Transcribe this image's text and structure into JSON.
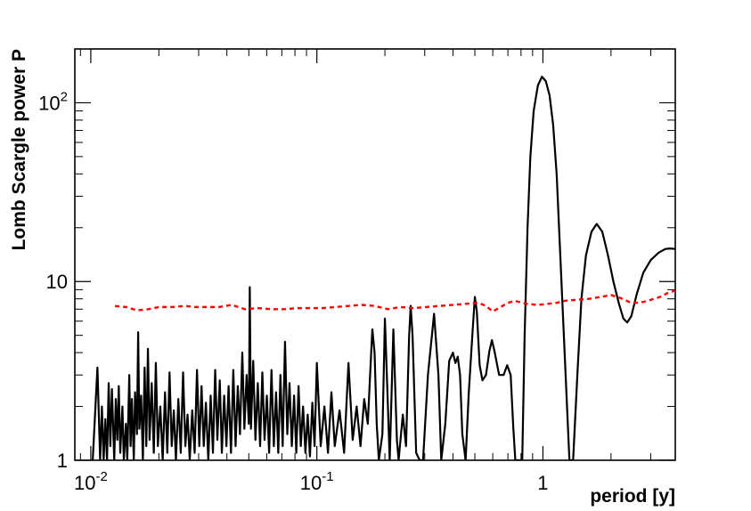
{
  "chart_data": {
    "type": "line",
    "xlabel": "period [y]",
    "ylabel": "Lomb Scargle power P",
    "x_scale": "log",
    "y_scale": "log",
    "xlim": [
      0.0085,
      3.85
    ],
    "ylim": [
      1,
      200
    ],
    "grid": false,
    "x_ticks": [
      {
        "value": 0.01,
        "base": "10",
        "exp": "-2"
      },
      {
        "value": 0.1,
        "base": "10",
        "exp": "-1"
      },
      {
        "value": 1,
        "base": "1",
        "exp": ""
      }
    ],
    "y_ticks": [
      {
        "value": 1,
        "base": "1",
        "exp": ""
      },
      {
        "value": 10,
        "base": "10",
        "exp": ""
      },
      {
        "value": 100,
        "base": "10",
        "exp": "2"
      }
    ],
    "series": [
      {
        "style": "solid",
        "color": "#000000",
        "points": [
          [
            0.0102,
            1
          ],
          [
            0.0107,
            3.3
          ],
          [
            0.011,
            1
          ],
          [
            0.0112,
            2.0
          ],
          [
            0.0114,
            1
          ],
          [
            0.0116,
            1.7
          ],
          [
            0.0118,
            1
          ],
          [
            0.012,
            2.7
          ],
          [
            0.0122,
            1.2
          ],
          [
            0.0124,
            2.5
          ],
          [
            0.0127,
            1
          ],
          [
            0.0129,
            2.2
          ],
          [
            0.0131,
            1.3
          ],
          [
            0.0133,
            2.6
          ],
          [
            0.0135,
            1.1
          ],
          [
            0.0138,
            2.0
          ],
          [
            0.014,
            1
          ],
          [
            0.0143,
            1.6
          ],
          [
            0.0145,
            1
          ],
          [
            0.0148,
            3.0
          ],
          [
            0.015,
            1.2
          ],
          [
            0.0152,
            2.2
          ],
          [
            0.0155,
            1
          ],
          [
            0.0157,
            2.4
          ],
          [
            0.016,
            1.4
          ],
          [
            0.0162,
            5.2
          ],
          [
            0.0164,
            1.5
          ],
          [
            0.0167,
            2.3
          ],
          [
            0.017,
            1
          ],
          [
            0.0173,
            3.3
          ],
          [
            0.0176,
            1.2
          ],
          [
            0.0179,
            4.2
          ],
          [
            0.0182,
            1.3
          ],
          [
            0.0186,
            2.7
          ],
          [
            0.019,
            1.1
          ],
          [
            0.0194,
            3.5
          ],
          [
            0.0198,
            1.2
          ],
          [
            0.0203,
            2.0
          ],
          [
            0.0208,
            1
          ],
          [
            0.0213,
            2.4
          ],
          [
            0.0218,
            1.1
          ],
          [
            0.0223,
            3.1
          ],
          [
            0.0228,
            1.2
          ],
          [
            0.0233,
            1.9
          ],
          [
            0.0238,
            1
          ],
          [
            0.0244,
            2.2
          ],
          [
            0.025,
            1.1
          ],
          [
            0.0256,
            3.1
          ],
          [
            0.0262,
            1.2
          ],
          [
            0.0268,
            1.8
          ],
          [
            0.0274,
            1
          ],
          [
            0.0281,
            1.9
          ],
          [
            0.0288,
            1.1
          ],
          [
            0.0295,
            3.2
          ],
          [
            0.0302,
            1.2
          ],
          [
            0.0309,
            2.6
          ],
          [
            0.0316,
            1.2
          ],
          [
            0.0323,
            2.1
          ],
          [
            0.0331,
            1.0
          ],
          [
            0.0339,
            2.3
          ],
          [
            0.0347,
            1.1
          ],
          [
            0.0355,
            3.2
          ],
          [
            0.0363,
            1.3
          ],
          [
            0.0372,
            2.8
          ],
          [
            0.038,
            1.1
          ],
          [
            0.0389,
            2.3
          ],
          [
            0.0398,
            1.2
          ],
          [
            0.0407,
            2.6
          ],
          [
            0.0417,
            1.1
          ],
          [
            0.0427,
            3.2
          ],
          [
            0.0437,
            1.2
          ],
          [
            0.0447,
            2.6
          ],
          [
            0.0457,
            1.4
          ],
          [
            0.0468,
            4.0
          ],
          [
            0.0478,
            1.5
          ],
          [
            0.0489,
            3.0
          ],
          [
            0.05,
            1.6
          ],
          [
            0.0505,
            9.3
          ],
          [
            0.0511,
            1.5
          ],
          [
            0.0523,
            3.6
          ],
          [
            0.0535,
            1.3
          ],
          [
            0.0548,
            2.7
          ],
          [
            0.0561,
            1.2
          ],
          [
            0.0574,
            3.1
          ],
          [
            0.0587,
            1.3
          ],
          [
            0.0601,
            2.3
          ],
          [
            0.0615,
            1.1
          ],
          [
            0.063,
            3.2
          ],
          [
            0.0645,
            1.2
          ],
          [
            0.066,
            2.4
          ],
          [
            0.0675,
            1.1
          ],
          [
            0.069,
            3.0
          ],
          [
            0.0706,
            1.2
          ],
          [
            0.0723,
            4.6
          ],
          [
            0.074,
            1.4
          ],
          [
            0.0757,
            2.7
          ],
          [
            0.0775,
            1.2
          ],
          [
            0.0793,
            2.3
          ],
          [
            0.0811,
            1.1
          ],
          [
            0.083,
            2.6
          ],
          [
            0.0849,
            1.2
          ],
          [
            0.0869,
            2.0
          ],
          [
            0.089,
            1.1
          ],
          [
            0.0911,
            1.8
          ],
          [
            0.0932,
            1.05
          ],
          [
            0.0955,
            2.1
          ],
          [
            0.0977,
            1.2
          ],
          [
            0.1,
            3.5
          ],
          [
            0.104,
            1.2
          ],
          [
            0.108,
            2.0
          ],
          [
            0.112,
            1.1
          ],
          [
            0.116,
            2.4
          ],
          [
            0.12,
            1.2
          ],
          [
            0.126,
            1.9
          ],
          [
            0.132,
            1.1
          ],
          [
            0.138,
            3.5
          ],
          [
            0.144,
            1.3
          ],
          [
            0.15,
            2.0
          ],
          [
            0.156,
            1.2
          ],
          [
            0.162,
            2.2
          ],
          [
            0.168,
            1.6
          ],
          [
            0.172,
            3.0
          ],
          [
            0.176,
            5.4
          ],
          [
            0.18,
            4.0
          ],
          [
            0.184,
            1.6
          ],
          [
            0.188,
            1.0
          ],
          [
            0.195,
            1.4
          ],
          [
            0.2,
            6.2
          ],
          [
            0.205,
            2.5
          ],
          [
            0.21,
            1.0
          ],
          [
            0.218,
            5.4
          ],
          [
            0.226,
            1.3
          ],
          [
            0.23,
            1.0
          ],
          [
            0.24,
            1.8
          ],
          [
            0.248,
            1.2
          ],
          [
            0.256,
            5.0
          ],
          [
            0.26,
            7.3
          ],
          [
            0.265,
            5.0
          ],
          [
            0.275,
            1.1
          ],
          [
            0.285,
            1.0
          ],
          [
            0.295,
            1.0
          ],
          [
            0.31,
            3.0
          ],
          [
            0.33,
            6.6
          ],
          [
            0.345,
            3.0
          ],
          [
            0.355,
            1.0
          ],
          [
            0.37,
            1.6
          ],
          [
            0.385,
            3.6
          ],
          [
            0.4,
            4.0
          ],
          [
            0.41,
            3.5
          ],
          [
            0.42,
            3.8
          ],
          [
            0.43,
            3.0
          ],
          [
            0.44,
            1.4
          ],
          [
            0.455,
            1.0
          ],
          [
            0.47,
            2.4
          ],
          [
            0.49,
            5.6
          ],
          [
            0.5,
            8.2
          ],
          [
            0.51,
            6.8
          ],
          [
            0.525,
            3.4
          ],
          [
            0.54,
            2.8
          ],
          [
            0.56,
            3.0
          ],
          [
            0.58,
            4.1
          ],
          [
            0.595,
            4.7
          ],
          [
            0.61,
            4.1
          ],
          [
            0.64,
            3.0
          ],
          [
            0.67,
            3.0
          ],
          [
            0.695,
            3.4
          ],
          [
            0.72,
            3.0
          ],
          [
            0.74,
            1.5
          ],
          [
            0.755,
            1.0
          ],
          [
            0.81,
            1.0
          ],
          [
            0.83,
            5.0
          ],
          [
            0.855,
            20
          ],
          [
            0.88,
            50
          ],
          [
            0.91,
            90
          ],
          [
            0.95,
            125
          ],
          [
            0.99,
            140
          ],
          [
            1.03,
            132
          ],
          [
            1.07,
            110
          ],
          [
            1.11,
            75
          ],
          [
            1.15,
            40
          ],
          [
            1.2,
            12
          ],
          [
            1.26,
            3.0
          ],
          [
            1.31,
            1.0
          ],
          [
            1.36,
            1.0
          ],
          [
            1.42,
            3.0
          ],
          [
            1.48,
            8.0
          ],
          [
            1.55,
            14
          ],
          [
            1.64,
            19
          ],
          [
            1.73,
            21
          ],
          [
            1.83,
            19
          ],
          [
            1.94,
            14
          ],
          [
            2.05,
            10
          ],
          [
            2.17,
            7.5
          ],
          [
            2.27,
            6.2
          ],
          [
            2.36,
            5.9
          ],
          [
            2.46,
            6.4
          ],
          [
            2.6,
            8.5
          ],
          [
            2.78,
            11.2
          ],
          [
            3.0,
            13.2
          ],
          [
            3.25,
            14.5
          ],
          [
            3.48,
            15.2
          ],
          [
            3.65,
            15.3
          ],
          [
            3.85,
            15.2
          ]
        ]
      },
      {
        "style": "dashed",
        "color": "#ff0000",
        "points": [
          [
            0.0128,
            7.3
          ],
          [
            0.0143,
            7.2
          ],
          [
            0.016,
            6.9
          ],
          [
            0.018,
            7.0
          ],
          [
            0.02,
            7.2
          ],
          [
            0.023,
            7.2
          ],
          [
            0.026,
            7.3
          ],
          [
            0.029,
            7.2
          ],
          [
            0.033,
            7.2
          ],
          [
            0.037,
            7.2
          ],
          [
            0.042,
            7.4
          ],
          [
            0.048,
            7.0
          ],
          [
            0.055,
            7.1
          ],
          [
            0.063,
            7.0
          ],
          [
            0.072,
            7.0
          ],
          [
            0.082,
            7.1
          ],
          [
            0.093,
            7.1
          ],
          [
            0.106,
            7.1
          ],
          [
            0.121,
            7.2
          ],
          [
            0.138,
            7.3
          ],
          [
            0.158,
            7.4
          ],
          [
            0.18,
            7.3
          ],
          [
            0.206,
            7.0
          ],
          [
            0.235,
            7.2
          ],
          [
            0.268,
            7.1
          ],
          [
            0.306,
            7.2
          ],
          [
            0.349,
            7.3
          ],
          [
            0.399,
            7.4
          ],
          [
            0.455,
            7.5
          ],
          [
            0.52,
            7.6
          ],
          [
            0.56,
            7.3
          ],
          [
            0.6,
            6.8
          ],
          [
            0.65,
            7.2
          ],
          [
            0.7,
            7.6
          ],
          [
            0.75,
            7.8
          ],
          [
            0.85,
            7.5
          ],
          [
            0.95,
            7.4
          ],
          [
            1.05,
            7.5
          ],
          [
            1.15,
            7.6
          ],
          [
            1.25,
            7.8
          ],
          [
            1.4,
            7.9
          ],
          [
            1.6,
            8.0
          ],
          [
            1.8,
            8.2
          ],
          [
            2.0,
            8.4
          ],
          [
            2.2,
            8.1
          ],
          [
            2.4,
            7.7
          ],
          [
            2.6,
            7.6
          ],
          [
            2.8,
            7.7
          ],
          [
            3.0,
            7.9
          ],
          [
            3.3,
            8.2
          ],
          [
            3.55,
            8.6
          ],
          [
            3.85,
            8.9
          ]
        ]
      }
    ]
  }
}
